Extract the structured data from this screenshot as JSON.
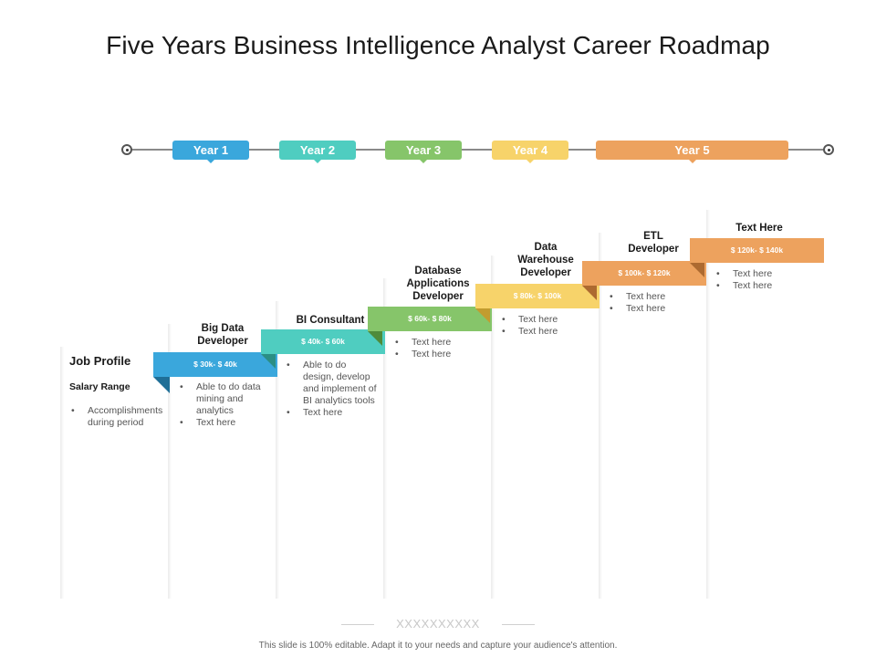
{
  "title": "Five Years Business Intelligence Analyst Career Roadmap",
  "timeline": {
    "years": [
      {
        "label": "Year 1",
        "color": "#3aa7dc",
        "dark": "#2479a3"
      },
      {
        "label": "Year 2",
        "color": "#4fcdc0",
        "dark": "#2e978c"
      },
      {
        "label": "Year 3",
        "color": "#86c56a",
        "dark": "#5a9446"
      },
      {
        "label": "Year 4",
        "color": "#f7d36a",
        "dark": "#c9a640"
      },
      {
        "label": "Year 5",
        "color": "#eda25e",
        "dark": "#b87438"
      }
    ]
  },
  "legend": {
    "job_profile": "Job Profile",
    "salary_range": "Salary Range",
    "accomplishments": "Accomplishments during period"
  },
  "stages": [
    {
      "role": "Big Data Developer",
      "salary": "$ 30k- $ 40k",
      "color": "#3aa7dc",
      "dark": "#1f6f97",
      "bullets": [
        "Able to do data mining and analytics",
        "Text here"
      ]
    },
    {
      "role": "BI Consultant",
      "salary": "$ 40k- $ 60k",
      "color": "#4fcdc0",
      "dark": "#2b8e84",
      "bullets": [
        "Able to do design, develop and implement of BI analytics tools",
        "Text here"
      ]
    },
    {
      "role": "Database Applications Developer",
      "salary": "$ 60k- $ 80k",
      "color": "#86c56a",
      "dark": "#4f8b3b",
      "bullets": [
        "Text here",
        "Text here"
      ]
    },
    {
      "role": "Data Warehouse Developer",
      "salary": "$ 80k- $ 100k",
      "color": "#f7d36a",
      "dark": "#c29c2f",
      "bullets": [
        "Text here",
        "Text here"
      ]
    },
    {
      "role": "ETL Developer",
      "salary": "$ 100k- $ 120k",
      "color": "#eda25e",
      "dark": "#ad6a30",
      "bullets": [
        "Text here",
        "Text here"
      ]
    },
    {
      "role": "Text Here",
      "salary": "$ 120k- $ 140k",
      "color": "#eda25e",
      "dark": "#ad6a30",
      "bullets": [
        "Text here",
        "Text here"
      ]
    }
  ],
  "placeholder_mark": "XXXXXXXXXX",
  "footer": "This slide is 100% editable. Adapt it to your needs and capture your audience's attention."
}
